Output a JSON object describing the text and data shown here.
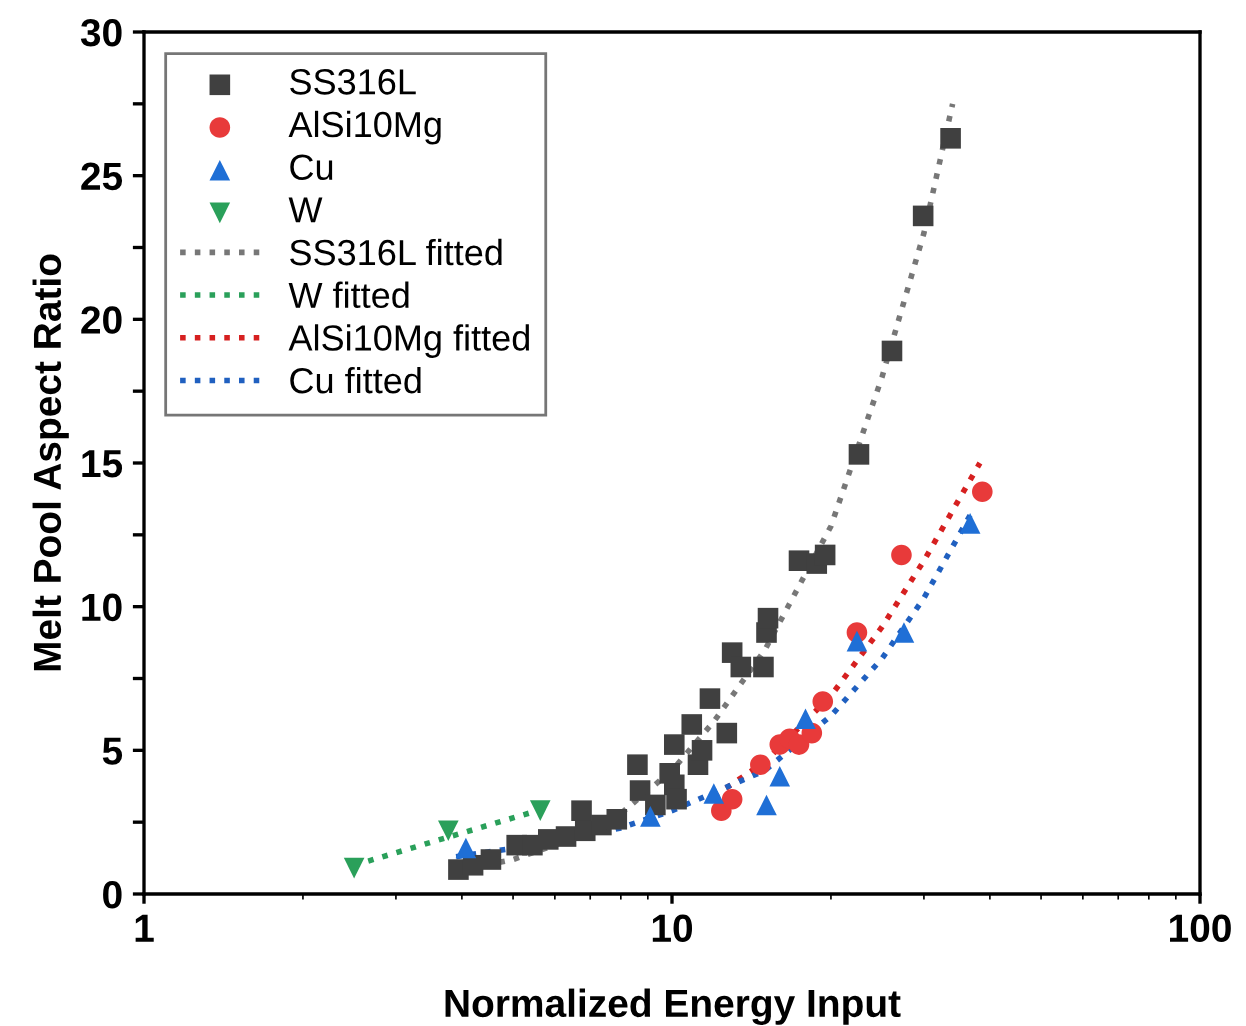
{
  "chart_data": {
    "type": "scatter",
    "xlabel": "Normalized Energy Input",
    "ylabel": "Melt Pool Aspect Ratio",
    "log": "x",
    "xlim": [
      1,
      100
    ],
    "xticks": [
      1,
      10,
      100
    ],
    "ylim": [
      0,
      30
    ],
    "yticks": [
      0,
      {
        "value": 2.5,
        "label": null
      },
      5,
      {
        "value": 7.5,
        "label": null
      },
      10,
      {
        "value": 12.5,
        "label": null
      },
      15,
      {
        "value": 17.5,
        "label": null
      },
      20,
      {
        "value": 22.5,
        "label": null
      },
      25,
      {
        "value": 27.5,
        "label": null
      },
      30
    ],
    "grid": false,
    "legend": "top left",
    "series": [
      {
        "name": "SS316L",
        "marker": "square",
        "color": "#404040",
        "x": [
          3.94,
          4.2,
          4.54,
          5.08,
          5.44,
          5.83,
          6.3,
          6.74,
          6.85,
          7.35,
          7.86,
          8.4,
          8.6,
          8.7,
          9.3,
          9.8,
          9.9,
          10.1,
          10.2,
          10.1,
          10.6,
          10.9,
          11.2,
          11.4,
          11.8,
          12.7,
          13.0,
          13.5,
          14.9,
          15.1,
          15.2,
          17.4,
          18.8,
          19.5,
          22.6,
          26.1,
          29.9,
          33.7
        ],
        "values": [
          0.85,
          1.0,
          1.2,
          1.7,
          1.7,
          1.9,
          2.0,
          2.9,
          2.2,
          2.4,
          2.6,
          null,
          4.5,
          3.6,
          3.1,
          null,
          4.2,
          3.8,
          3.3,
          5.2,
          null,
          5.9,
          4.5,
          5.0,
          6.8,
          5.6,
          8.4,
          7.9,
          7.9,
          9.1,
          9.6,
          11.6,
          11.5,
          11.8,
          15.3,
          18.9,
          23.6,
          26.3
        ]
      },
      {
        "name": "AlSi10Mg",
        "marker": "circle",
        "color": "#e83a3a",
        "x": [
          12.4,
          13.0,
          14.7,
          16.0,
          16.7,
          17.4,
          18.4,
          19.3,
          22.4,
          27.2,
          38.7
        ],
        "values": [
          2.9,
          3.3,
          4.5,
          5.2,
          5.4,
          5.2,
          5.6,
          6.7,
          9.1,
          11.8,
          14.0
        ]
      },
      {
        "name": "Cu",
        "marker": "triangle",
        "color": "#1f6fd6",
        "x": [
          4.07,
          9.1,
          12.0,
          15.1,
          16.0,
          17.9,
          22.4,
          27.5,
          36.7
        ],
        "values": [
          1.6,
          2.7,
          3.5,
          3.1,
          4.1,
          6.1,
          8.8,
          9.1,
          12.9
        ]
      },
      {
        "name": "W",
        "marker": "triangle_down",
        "color": "#2aa05a",
        "x": [
          2.5,
          3.77,
          5.63
        ],
        "values": [
          0.9,
          2.2,
          2.9
        ]
      },
      {
        "name": "SS316L fitted",
        "type": "line",
        "line_style": "dotted",
        "color": "#777777",
        "x": [
          3.9,
          5,
          6,
          8,
          10,
          12,
          15,
          20,
          25,
          30,
          34
        ],
        "values": [
          0.8,
          1.2,
          1.7,
          2.8,
          4.3,
          6.0,
          8.5,
          12.8,
          18.0,
          23.0,
          27.5
        ]
      },
      {
        "name": "W fitted",
        "type": "line",
        "line_style": "dotted",
        "color": "#2aa05a",
        "x": [
          2.5,
          3.8,
          5.8
        ],
        "values": [
          1.0,
          2.0,
          3.0
        ]
      },
      {
        "name": "AlSi10Mg fitted",
        "type": "line",
        "line_style": "dotted",
        "color": "#d62020",
        "x": [
          12,
          15,
          20,
          25,
          30,
          38.3
        ],
        "values": [
          3.4,
          4.6,
          6.9,
          9.3,
          11.6,
          15.0
        ]
      },
      {
        "name": "Cu fitted",
        "type": "line",
        "line_style": "dotted",
        "color": "#2060c0",
        "x": [
          3.9,
          6,
          8,
          10,
          15,
          20,
          25,
          30,
          37
        ],
        "values": [
          1.3,
          1.8,
          2.3,
          2.9,
          4.3,
          6.2,
          8.2,
          10.3,
          13.3
        ]
      }
    ]
  }
}
